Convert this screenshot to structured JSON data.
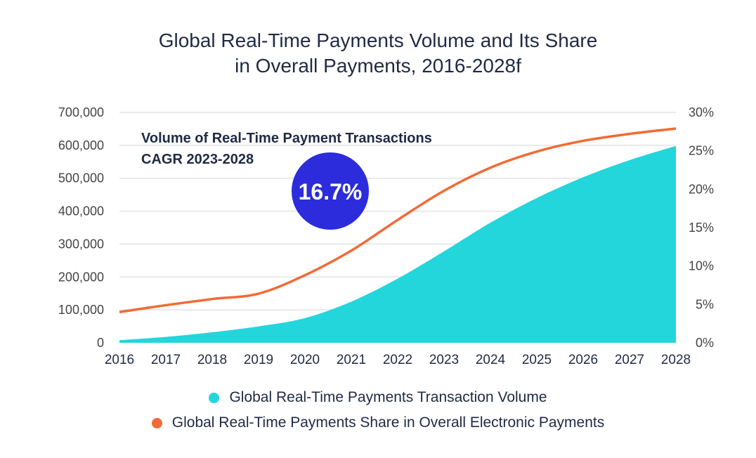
{
  "colors": {
    "volume": "#22d6dc",
    "share": "#f26a35",
    "bubble": "#2c2cdc",
    "text": "#1f2a44",
    "tick": "#444444",
    "grid": "#e3e3e3"
  },
  "chart_data": {
    "type": "area",
    "title_line1": "Global Real-Time Payments Volume and Its Share",
    "title_line2": "in Overall Payments, 2016-2028f",
    "categories": [
      "2016",
      "2017",
      "2018",
      "2019",
      "2020",
      "2021",
      "2022",
      "2023",
      "2024",
      "2025",
      "2026",
      "2027",
      "2028"
    ],
    "y_left": {
      "ylim": [
        0,
        700000
      ],
      "ticks": [
        "0",
        "100,000",
        "200,000",
        "300,000",
        "400,000",
        "500,000",
        "600,000",
        "700,000"
      ]
    },
    "y_right": {
      "ylim": [
        0,
        30
      ],
      "ticks": [
        "0%",
        "5%",
        "10%",
        "15%",
        "20%",
        "25%",
        "30%"
      ]
    },
    "grid": true,
    "series": [
      {
        "name": "Global Real-Time Payments Transaction Volume",
        "type": "area",
        "axis": "left",
        "values": [
          8000,
          18000,
          32000,
          50000,
          75000,
          125000,
          195000,
          278000,
          365000,
          440000,
          503000,
          555000,
          598000
        ]
      },
      {
        "name": "Global Real-Time Payments Share in Overall Electronic Payments",
        "type": "line",
        "axis": "right",
        "values": [
          4.0,
          4.9,
          5.7,
          6.4,
          8.8,
          12.0,
          16.0,
          19.8,
          22.8,
          24.9,
          26.3,
          27.2,
          27.9
        ]
      }
    ],
    "annotation": {
      "line1": "Volume of Real-Time Payment Transactions",
      "line2": "CAGR 2023-2028",
      "value": "16.7%"
    },
    "legend_position": "bottom"
  }
}
